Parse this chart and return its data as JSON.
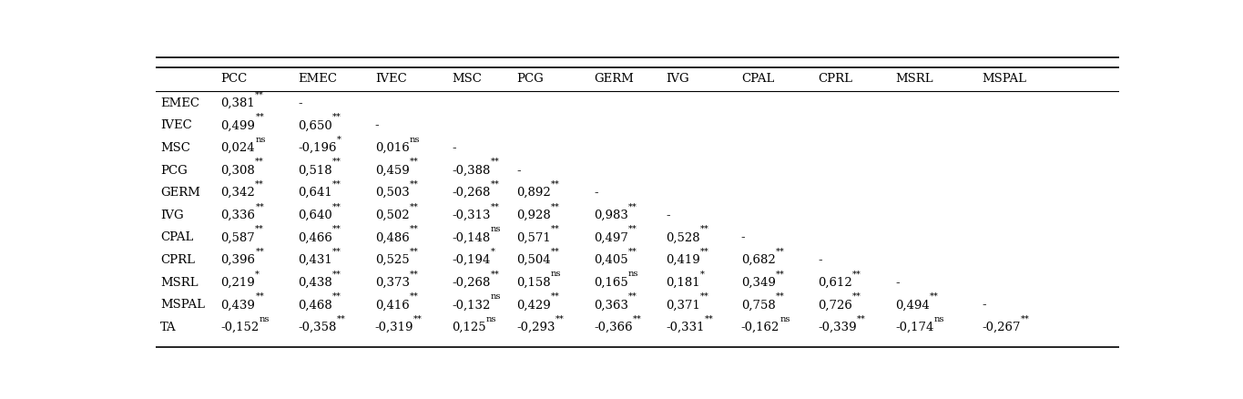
{
  "col_headers": [
    "",
    "PCC",
    "EMEC",
    "IVEC",
    "MSC",
    "PCG",
    "GERM",
    "IVG",
    "CPAL",
    "CPRL",
    "MSRL",
    "MSPAL"
  ],
  "rows": [
    {
      "label": "EMEC",
      "values": [
        "0,381**",
        "-",
        "",
        "",
        "",
        "",
        "",
        "",
        "",
        "",
        ""
      ]
    },
    {
      "label": "IVEC",
      "values": [
        "0,499**",
        "0,650**",
        "-",
        "",
        "",
        "",
        "",
        "",
        "",
        "",
        ""
      ]
    },
    {
      "label": "MSC",
      "values": [
        "0,024ns",
        "-0,196*",
        "0,016ns",
        "-",
        "",
        "",
        "",
        "",
        "",
        "",
        ""
      ]
    },
    {
      "label": "PCG",
      "values": [
        "0,308**",
        "0,518**",
        "0,459**",
        "-0,388**",
        "-",
        "",
        "",
        "",
        "",
        "",
        ""
      ]
    },
    {
      "label": "GERM",
      "values": [
        "0,342**",
        "0,641**",
        "0,503**",
        "-0,268**",
        "0,892**",
        "-",
        "",
        "",
        "",
        "",
        ""
      ]
    },
    {
      "label": "IVG",
      "values": [
        "0,336**",
        "0,640**",
        "0,502**",
        "-0,313**",
        "0,928**",
        "0,983**",
        "-",
        "",
        "",
        "",
        ""
      ]
    },
    {
      "label": "CPAL",
      "values": [
        "0,587**",
        "0,466**",
        "0,486**",
        "-0,148ns",
        "0,571**",
        "0,497**",
        "0,528**",
        "-",
        "",
        "",
        ""
      ]
    },
    {
      "label": "CPRL",
      "values": [
        "0,396**",
        "0,431**",
        "0,525**",
        "-0,194*",
        "0,504**",
        "0,405**",
        "0,419**",
        "0,682**",
        "-",
        "",
        ""
      ]
    },
    {
      "label": "MSRL",
      "values": [
        "0,219*",
        "0,438**",
        "0,373**",
        "-0,268**",
        "0,158ns",
        "0,165ns",
        "0,181*",
        "0,349**",
        "0,612**",
        "-",
        ""
      ]
    },
    {
      "label": "MSPAL",
      "values": [
        "0,439**",
        "0,468**",
        "0,416**",
        "-0,132ns",
        "0,429**",
        "0,363**",
        "0,371**",
        "0,758**",
        "0,726**",
        "0,494**",
        "-"
      ]
    },
    {
      "label": "TA",
      "values": [
        "-0,152ns",
        "-0,358**",
        "-0,319**",
        "0,125ns",
        "-0,293**",
        "-0,366**",
        "-0,331**",
        "-0,162ns",
        "-0,339**",
        "-0,174ns",
        "-0,267**"
      ]
    }
  ],
  "bg_color": "#ffffff",
  "text_color": "#000000",
  "line_color": "#000000",
  "font_size": 9.5
}
